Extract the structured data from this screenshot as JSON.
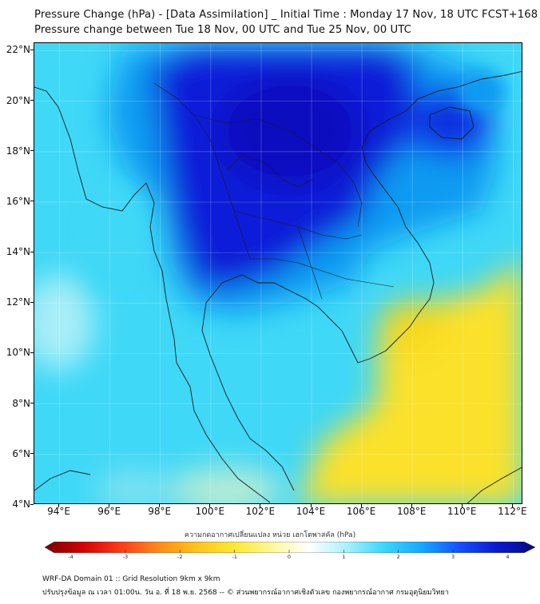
{
  "header": {
    "title": "Pressure Change (hPa) - [Data Assimilation] _ Initial Time : Monday 17 Nov, 18 UTC FCST+168",
    "subtitle": "Pressure change between Tue 18 Nov, 00 UTC and Tue 25 Nov, 00 UTC"
  },
  "map": {
    "lat_labels": [
      "22°N",
      "20°N",
      "18°N",
      "16°N",
      "14°N",
      "12°N",
      "10°N",
      "8°N",
      "6°N",
      "4°N"
    ],
    "lon_labels": [
      "94°E",
      "96°E",
      "98°E",
      "100°E",
      "102°E",
      "104°E",
      "106°E",
      "108°E",
      "110°E",
      "112°E"
    ],
    "lat_range": [
      4,
      22.3
    ],
    "lon_range": [
      93,
      112.4
    ],
    "grid": true
  },
  "colorbar": {
    "label": "ความกดอากาศเปลี่ยนแปลง หน่วย เฮกโตพาสคัล (hPa)",
    "ticks": [
      "-4",
      "-3",
      "-2",
      "-1",
      "0",
      "1",
      "2",
      "3",
      "4"
    ],
    "range": [
      -4.3,
      4.3
    ],
    "colors": [
      "#7a0000",
      "#d40000",
      "#ff3a1a",
      "#ff8a1a",
      "#ffc21a",
      "#ffe832",
      "#fff79a",
      "#ffffff",
      "#aaf0ff",
      "#3ad6ff",
      "#14a8ff",
      "#1450ff",
      "#0a18d0",
      "#050a7a"
    ]
  },
  "footer": {
    "line1": "WRF-DA Domain 01 :: Grid Resolution 9km x 9km",
    "line2": "ปรับปรุงข้อมูล ณ เวลา 01:00น. วัน อ. ที่ 18 พ.ย. 2568 -- © ส่วนพยากรณ์อากาศเชิงตัวเลข กองพยากรณ์อากาศ กรมอุตุนิยมวิทยา"
  },
  "field_colors": {
    "yellow": "#fbe12a",
    "light_blue": "#3fd8f7",
    "mid_blue": "#0a9bf2",
    "deep_blue": "#0a1fd8",
    "coast": "#1a1a1a"
  }
}
